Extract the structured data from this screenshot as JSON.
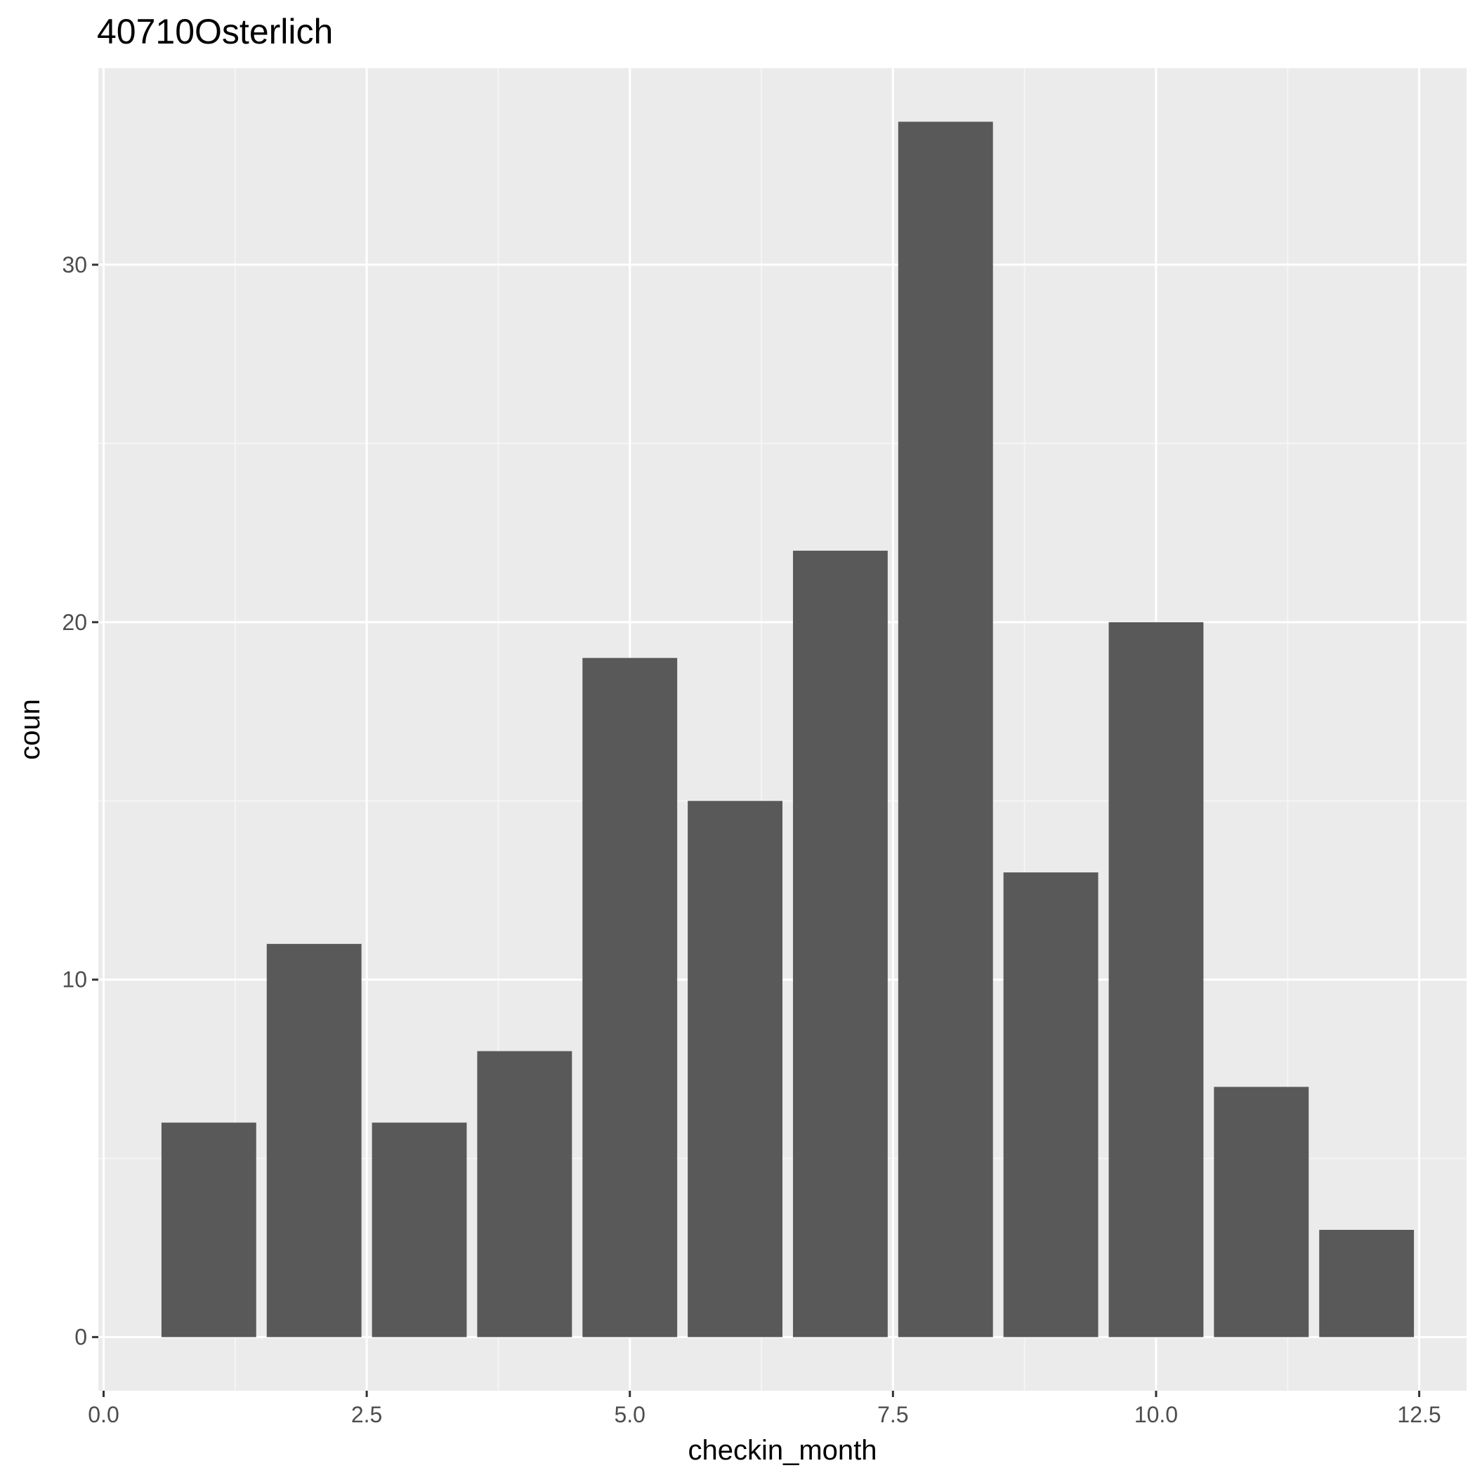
{
  "chart_data": {
    "type": "bar",
    "title": "40710Osterlich",
    "xlabel": "checkin_month",
    "ylabel": "coun",
    "x": [
      1,
      2,
      3,
      4,
      5,
      6,
      7,
      8,
      9,
      10,
      11,
      12
    ],
    "values": [
      6,
      11,
      6,
      8,
      19,
      15,
      22,
      34,
      13,
      20,
      7,
      3
    ],
    "bar_width": 0.9,
    "xlim": [
      -0.05,
      12.95
    ],
    "ylim": [
      -1.5,
      35.5
    ],
    "x_ticks": [
      0,
      2.5,
      5,
      7.5,
      10,
      12.5
    ],
    "x_tick_labels": [
      "0.0",
      "2.5",
      "5.0",
      "7.5",
      "10.0",
      "12.5"
    ],
    "y_ticks": [
      0,
      10,
      20,
      30
    ],
    "y_tick_labels": [
      "0",
      "10",
      "20",
      "30"
    ],
    "grid": true,
    "legend": "none",
    "colors": {
      "panel": "#ebebeb",
      "bar": "#595959",
      "grid_major": "#ffffff",
      "grid_minor": "#f5f5f5",
      "tick": "#333333"
    }
  }
}
